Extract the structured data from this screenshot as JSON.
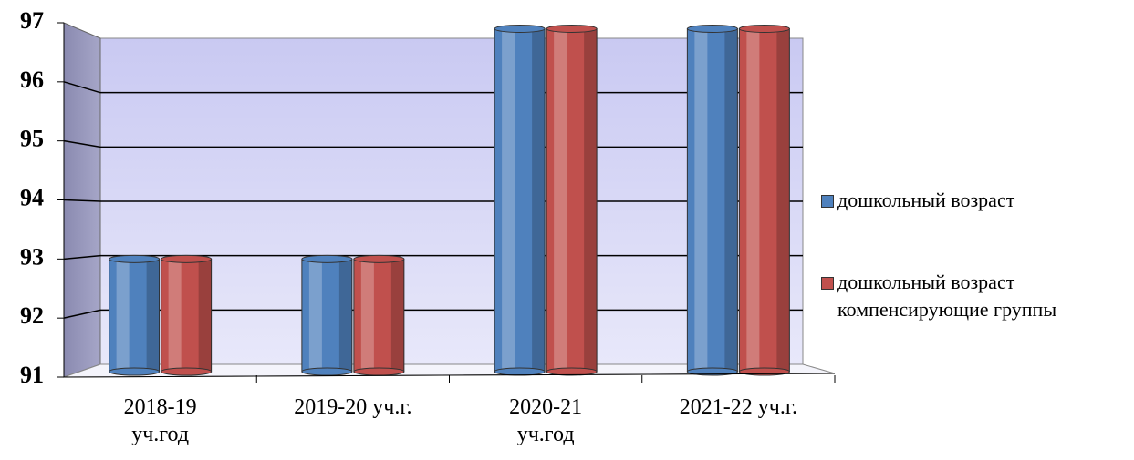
{
  "chart_data": {
    "type": "bar",
    "categories": [
      "2018-19\nуч.год",
      "2019-20 уч.г.",
      "2020-21\nуч.год",
      "2021-22 уч.г."
    ],
    "series": [
      {
        "name": "дошкольный возраст",
        "color": "#4f81bd",
        "values": [
          93,
          93,
          96.9,
          96.9
        ]
      },
      {
        "name": "дошкольный возраст\nкомпенсирующие группы",
        "color": "#c0504d",
        "values": [
          93,
          93,
          96.9,
          96.9
        ]
      }
    ],
    "ylim": [
      91,
      97
    ],
    "yticks": [
      91,
      92,
      93,
      94,
      95,
      96,
      97
    ],
    "grid": true,
    "legend": "right"
  }
}
